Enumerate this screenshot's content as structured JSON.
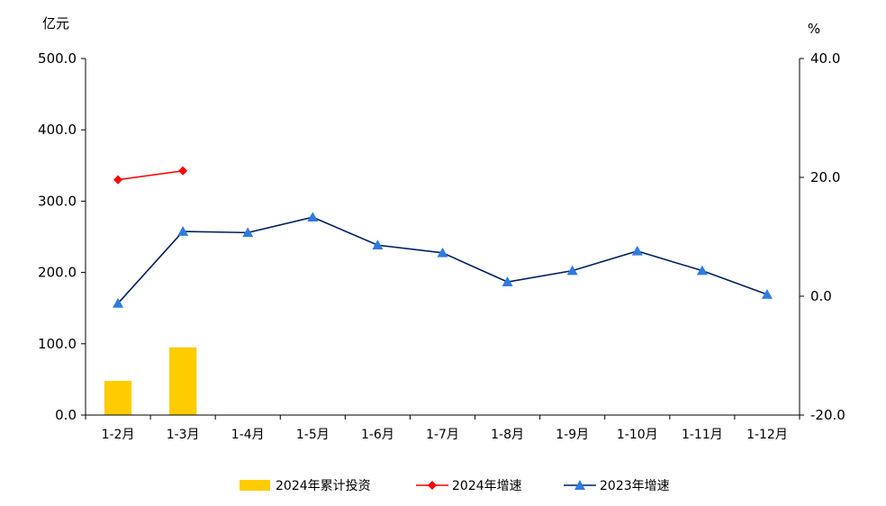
{
  "chart_data": {
    "type": "bar+line",
    "categories": [
      "1-2月",
      "1-3月",
      "1-4月",
      "1-5月",
      "1-6月",
      "1-7月",
      "1-8月",
      "1-9月",
      "1-10月",
      "1-11月",
      "1-12月"
    ],
    "left_axis": {
      "unit": "亿元",
      "range": [
        0,
        500
      ],
      "ticks": [
        "0.0",
        "100.0",
        "200.0",
        "300.0",
        "400.0",
        "500.0"
      ]
    },
    "right_axis": {
      "unit": "%",
      "range": [
        -20,
        40
      ],
      "ticks": [
        "-20.0",
        "0.0",
        "20.0",
        "40.0"
      ]
    },
    "series": [
      {
        "name": "2024年累计投资",
        "type": "bar",
        "axis": "left",
        "color": "#FFCC00",
        "values": [
          48,
          95,
          null,
          null,
          null,
          null,
          null,
          null,
          null,
          null,
          null
        ]
      },
      {
        "name": "2024年增速",
        "type": "line",
        "axis": "right",
        "marker": "diamond",
        "color": "#FF0000",
        "values": [
          19.6,
          21.1,
          null,
          null,
          null,
          null,
          null,
          null,
          null,
          null,
          null
        ]
      },
      {
        "name": "2023年增速",
        "type": "line",
        "axis": "right",
        "marker": "triangle",
        "color": "#002060",
        "marker_color": "#2F7BE0",
        "values": [
          -1.2,
          10.9,
          10.7,
          13.3,
          8.6,
          7.3,
          2.4,
          4.3,
          7.6,
          4.3,
          0.3
        ]
      }
    ],
    "legend_position": "bottom",
    "grid": false
  }
}
